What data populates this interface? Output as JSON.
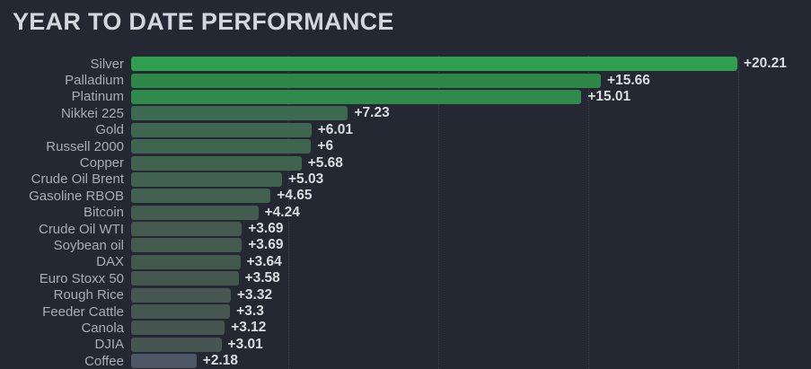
{
  "header": {
    "title": "YEAR TO DATE PERFORMANCE"
  },
  "colors": {
    "background": "#232833",
    "title_text": "#d3d6dc",
    "category_label_text": "#a8aeb9",
    "value_label_text": "#d9dce1",
    "gridline": "#3a4150",
    "bar_high": "#2f9e4e",
    "bar_low": "#4d5665"
  },
  "chart_data": {
    "type": "bar",
    "orientation": "horizontal",
    "title": "YEAR TO DATE PERFORMANCE",
    "categories": [
      "Silver",
      "Palladium",
      "Platinum",
      "Nikkei 225",
      "Gold",
      "Russell 2000",
      "Copper",
      "Crude Oil Brent",
      "Gasoline RBOB",
      "Bitcoin",
      "Crude Oil WTI",
      "Soybean oil",
      "DAX",
      "Euro Stoxx 50",
      "Rough Rice",
      "Feeder Cattle",
      "Canola",
      "DJIA",
      "Coffee"
    ],
    "values": [
      20.21,
      15.66,
      15.01,
      7.23,
      6.01,
      6,
      5.68,
      5.03,
      4.65,
      4.24,
      3.69,
      3.69,
      3.64,
      3.58,
      3.32,
      3.3,
      3.12,
      3.01,
      2.18
    ],
    "value_labels": [
      "+20.21",
      "+15.66",
      "+15.01",
      "+7.23",
      "+6.01",
      "+6",
      "+5.68",
      "+5.03",
      "+4.65",
      "+4.24",
      "+3.69",
      "+3.69",
      "+3.64",
      "+3.58",
      "+3.32",
      "+3.3",
      "+3.12",
      "+3.01",
      "+2.18"
    ],
    "bar_colors": [
      "#2f9e4e",
      "#2e8749",
      "#308a4b",
      "#3d6951",
      "#3f6650",
      "#3f6550",
      "#40634f",
      "#41614f",
      "#425f4f",
      "#435c4e",
      "#445a4e",
      "#445a4e",
      "#44594e",
      "#45584f",
      "#455750",
      "#455750",
      "#465550",
      "#465550",
      "#4d5665"
    ],
    "xlim": [
      0,
      22.4
    ],
    "gridlines_at": [
      5,
      10,
      15,
      20
    ],
    "grid_style": "dotted-vertical",
    "legend": "none",
    "xlabel": "",
    "ylabel": ""
  }
}
